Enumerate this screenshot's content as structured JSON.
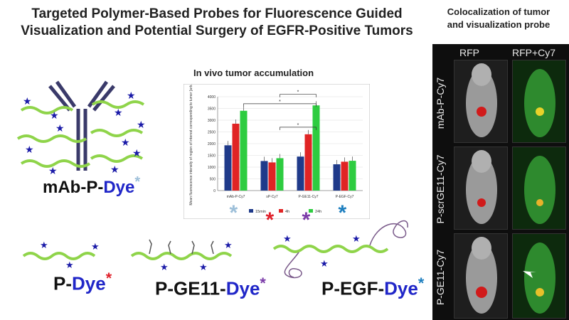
{
  "title_line1": "Targeted Polymer-Based Probes for Fluorescence Guided",
  "title_line2": "Visualization and Potential Surgery of EGFR-Positive Tumors",
  "coloc_title_line1": "Colocalization of tumor",
  "coloc_title_line2": "and visualization probe",
  "chart_title": "In vivo tumor accumulation",
  "probes": [
    {
      "prefix": "mAb-P-",
      "dye": "Dye",
      "star": "*",
      "star_color": "#9dbfd9"
    },
    {
      "prefix": "P-",
      "dye": "Dye",
      "star": "*",
      "star_color": "#e0202a"
    },
    {
      "prefix": "P-GE11-",
      "dye": "Dye",
      "star": "*",
      "star_color": "#7a3aa8"
    },
    {
      "prefix": "P-EGF-",
      "dye": "Dye",
      "star": "*",
      "star_color": "#1e7fbf"
    }
  ],
  "panel": {
    "col_headers": [
      "RFP",
      "RFP+Cy7"
    ],
    "row_labels": [
      "mAb-P-Cy7",
      "P-scrGE11-Cy7",
      "P-GE11-Cy7"
    ]
  },
  "colors": {
    "15min": "#1f3a8a",
    "4h": "#e02424",
    "24h": "#2ecc40"
  },
  "chart_data": {
    "type": "bar",
    "title": "",
    "ylabel": "Mean fluorescence intensity of region of interest corresponding to tumor [arb. unit]",
    "xlabel": "",
    "ylim": [
      0,
      4000
    ],
    "yticks": [
      0,
      500,
      1000,
      1500,
      2000,
      2500,
      3000,
      3500,
      4000
    ],
    "categories": [
      "mAb-P-Cy7",
      "sP-Cy7",
      "P-GE11-Cy7",
      "P-EGF-Cy7"
    ],
    "series": [
      {
        "name": "15min",
        "values": [
          1930,
          1260,
          1450,
          1120
        ]
      },
      {
        "name": "4h",
        "values": [
          2850,
          1200,
          2400,
          1230
        ]
      },
      {
        "name": "24h",
        "values": [
          3400,
          1380,
          3630,
          1270
        ]
      }
    ],
    "significance_marker": "*",
    "legend_position": "bottom",
    "category_star_colors": [
      "#9dbfd9",
      "#e0202a",
      "#7a3aa8",
      "#1e7fbf"
    ]
  }
}
